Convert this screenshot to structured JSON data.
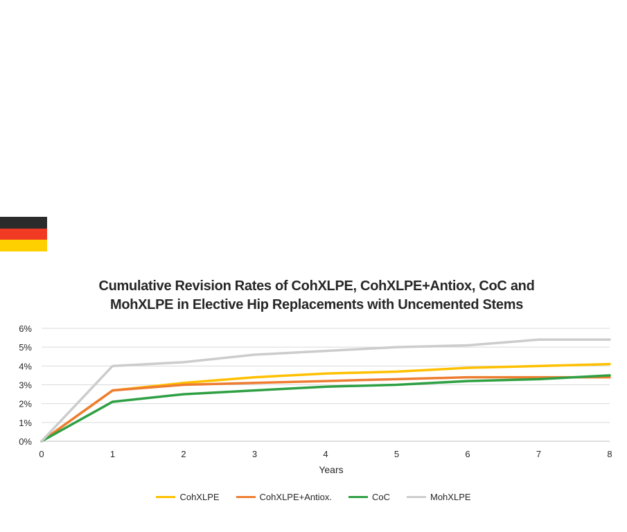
{
  "flag": {
    "icon": "german-flag-icon",
    "colors": [
      "#2b2b2b",
      "#f03a24",
      "#ffd000"
    ]
  },
  "chart_data": {
    "type": "line",
    "title_lines": [
      "Cumulative Revision Rates of CohXLPE, CohXLPE+Antiox, CoC and",
      "MohXLPE in Elective Hip Replacements with Uncemented Stems"
    ],
    "xlabel": "Years",
    "ylabel": "",
    "x": [
      0,
      1,
      2,
      3,
      4,
      5,
      6,
      7,
      8
    ],
    "xlim": [
      0,
      8
    ],
    "ylim": [
      0,
      6
    ],
    "y_ticks": [
      "0%",
      "1%",
      "2%",
      "3%",
      "4%",
      "5%",
      "6%"
    ],
    "x_ticks": [
      "0",
      "1",
      "2",
      "3",
      "4",
      "5",
      "6",
      "7",
      "8"
    ],
    "grid": true,
    "legend_position": "bottom",
    "series": [
      {
        "name": "CohXLPE",
        "color": "#ffc000",
        "values": [
          0,
          2.7,
          3.1,
          3.4,
          3.6,
          3.7,
          3.9,
          4.0,
          4.1
        ]
      },
      {
        "name": "CohXLPE+Antiox.",
        "color": "#ed7d31",
        "values": [
          0,
          2.7,
          3.0,
          3.1,
          3.2,
          3.3,
          3.4,
          3.4,
          3.4
        ]
      },
      {
        "name": "CoC",
        "color": "#2ea043",
        "values": [
          0,
          2.1,
          2.5,
          2.7,
          2.9,
          3.0,
          3.2,
          3.3,
          3.5
        ]
      },
      {
        "name": "MohXLPE",
        "color": "#cccccc",
        "values": [
          0,
          4.0,
          4.2,
          4.6,
          4.8,
          5.0,
          5.1,
          5.4,
          5.4
        ]
      }
    ]
  }
}
